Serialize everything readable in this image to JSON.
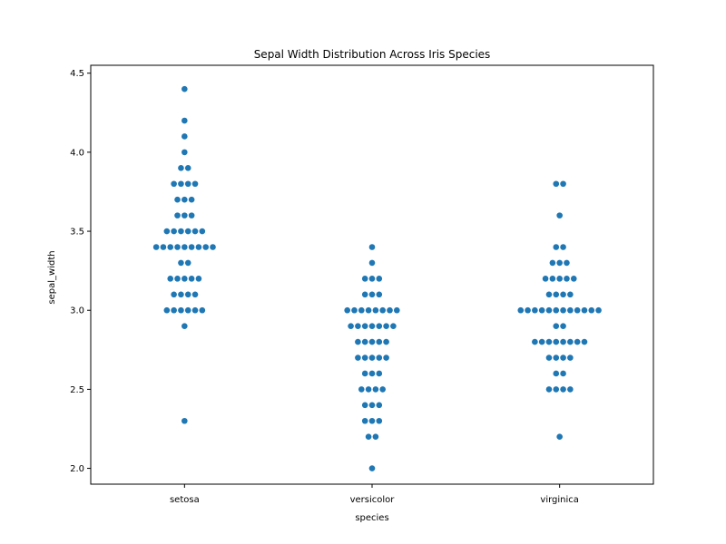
{
  "chart_data": {
    "type": "scatter",
    "subtype": "swarm",
    "title": "Sepal Width Distribution Across Iris Species",
    "xlabel": "species",
    "ylabel": "sepal_width",
    "categories": [
      "setosa",
      "versicolor",
      "virginica"
    ],
    "ylim": [
      1.9,
      4.55
    ],
    "yticks": [
      2.0,
      2.5,
      3.0,
      3.5,
      4.0,
      4.5
    ],
    "ytick_labels": [
      "2.0",
      "2.5",
      "3.0",
      "3.5",
      "4.0",
      "4.5"
    ],
    "grid": false,
    "legend": "none",
    "point_color": "#1f77b4",
    "series": [
      {
        "category": "setosa",
        "values": [
          4.4,
          4.2,
          4.1,
          4.0,
          3.9,
          3.9,
          3.8,
          3.8,
          3.8,
          3.8,
          3.7,
          3.7,
          3.7,
          3.6,
          3.6,
          3.6,
          3.5,
          3.5,
          3.5,
          3.5,
          3.5,
          3.5,
          3.4,
          3.4,
          3.4,
          3.4,
          3.4,
          3.4,
          3.4,
          3.4,
          3.4,
          3.3,
          3.3,
          3.2,
          3.2,
          3.2,
          3.2,
          3.2,
          3.1,
          3.1,
          3.1,
          3.1,
          3.0,
          3.0,
          3.0,
          3.0,
          3.0,
          3.0,
          2.9,
          2.3
        ]
      },
      {
        "category": "versicolor",
        "values": [
          3.4,
          3.3,
          3.2,
          3.2,
          3.2,
          3.1,
          3.1,
          3.1,
          3.0,
          3.0,
          3.0,
          3.0,
          3.0,
          3.0,
          3.0,
          3.0,
          2.9,
          2.9,
          2.9,
          2.9,
          2.9,
          2.9,
          2.9,
          2.8,
          2.8,
          2.8,
          2.8,
          2.8,
          2.7,
          2.7,
          2.7,
          2.7,
          2.7,
          2.6,
          2.6,
          2.6,
          2.5,
          2.5,
          2.5,
          2.5,
          2.4,
          2.4,
          2.4,
          2.3,
          2.3,
          2.3,
          2.2,
          2.2,
          2.0
        ]
      },
      {
        "category": "virginica",
        "values": [
          3.8,
          3.8,
          3.6,
          3.4,
          3.4,
          3.3,
          3.3,
          3.3,
          3.2,
          3.2,
          3.2,
          3.2,
          3.2,
          3.1,
          3.1,
          3.1,
          3.1,
          3.0,
          3.0,
          3.0,
          3.0,
          3.0,
          3.0,
          3.0,
          3.0,
          3.0,
          3.0,
          3.0,
          3.0,
          2.9,
          2.9,
          2.8,
          2.8,
          2.8,
          2.8,
          2.8,
          2.8,
          2.8,
          2.8,
          2.7,
          2.7,
          2.7,
          2.7,
          2.6,
          2.6,
          2.5,
          2.5,
          2.5,
          2.5,
          2.2
        ]
      }
    ]
  }
}
